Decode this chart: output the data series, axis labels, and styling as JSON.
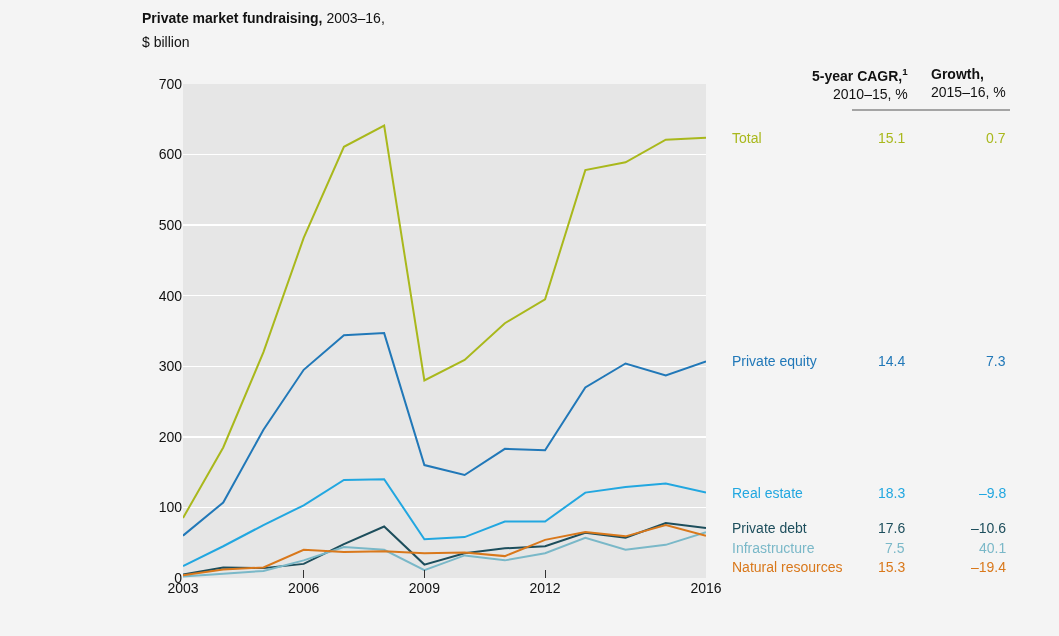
{
  "chart_data": {
    "type": "line",
    "title": "Private market fundraising,",
    "subtitle": "2003–16,",
    "ylabel": "$ billion",
    "x": [
      2003,
      2004,
      2005,
      2006,
      2007,
      2008,
      2009,
      2010,
      2011,
      2012,
      2013,
      2014,
      2015,
      2016
    ],
    "series": [
      {
        "name": "Total",
        "color": "#a9b81c",
        "values": [
          85,
          185,
          320,
          482,
          611,
          641,
          280,
          309,
          361,
          395,
          578,
          589,
          621,
          624
        ]
      },
      {
        "name": "Private equity",
        "color": "#2178b8",
        "values": [
          60,
          107,
          210,
          295,
          344,
          347,
          160,
          146,
          183,
          181,
          270,
          304,
          287,
          307
        ]
      },
      {
        "name": "Real estate",
        "color": "#22a7e0",
        "values": [
          17,
          45,
          75,
          103,
          139,
          140,
          55,
          58,
          80,
          80,
          121,
          129,
          134,
          121
        ]
      },
      {
        "name": "Private debt",
        "color": "#1d4e5c",
        "values": [
          5,
          15,
          14,
          20,
          48,
          73,
          19,
          35,
          42,
          45,
          64,
          57,
          78,
          71
        ]
      },
      {
        "name": "Infrastructure",
        "color": "#7ab8c8",
        "values": [
          2,
          6,
          10,
          25,
          44,
          40,
          11,
          32,
          25,
          35,
          57,
          40,
          47,
          65
        ]
      },
      {
        "name": "Natural resources",
        "color": "#d9781b",
        "values": [
          4,
          12,
          15,
          40,
          37,
          38,
          35,
          36,
          31,
          54,
          65,
          59,
          75,
          60
        ]
      }
    ],
    "annotations": [
      "5-year CAGR,$^{1}$",
      "2010–15, %",
      "Growth,",
      "2015–16, %",
      "15.1",
      "0.7",
      "14.4",
      "7.3",
      "18.3",
      "–9.8",
      "17.6",
      "–10.6",
      "7.5",
      "40.1",
      "15.3",
      "–19.4"
    ],
    "xlim": [
      2003,
      2016
    ],
    "xticks": [
      2003,
      2006,
      2009,
      2012,
      2016
    ],
    "ylim": [
      0,
      700
    ],
    "yticks": [
      0,
      100,
      200,
      300,
      400,
      500,
      600,
      700
    ],
    "grid": "y",
    "legend": false,
    "marker": "none",
    "line_style": "solid"
  }
}
